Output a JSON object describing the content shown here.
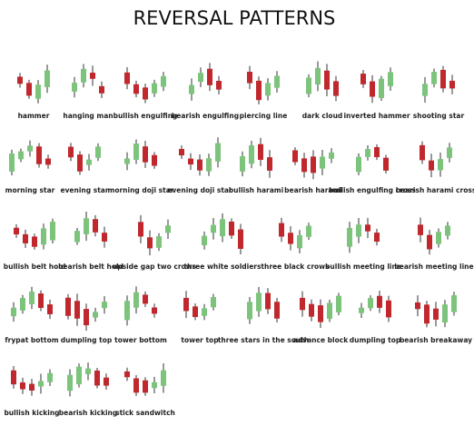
{
  "title": "REVERSAL PATTERNS",
  "rows": [
    [
      "hammer",
      "hanging man",
      "bullish engulfing",
      "bearish engulfing",
      "piercing line",
      "dark cloud",
      "inverted hammer",
      "shooting star"
    ],
    [
      "morning star",
      "evening star",
      "morning doji star",
      "evening doji star",
      "bullish harami",
      "bearish harami",
      "bullish engulfing cross",
      "bearish harami cross"
    ],
    [
      "bullish belt hold",
      "bearish belt hold",
      "upside gap two crows",
      "three white soldiers",
      "three black crows",
      "bullish meeting line",
      "bearish meeting line"
    ],
    [
      "frypat bottom",
      "dumpling top",
      "tower bottom",
      "tower top",
      "three stars in the south",
      "advance block",
      "dumpling top",
      "bearish breakaway"
    ],
    [
      "bullish kicking",
      "bearish kicking",
      "stick sandwitch"
    ]
  ]
}
